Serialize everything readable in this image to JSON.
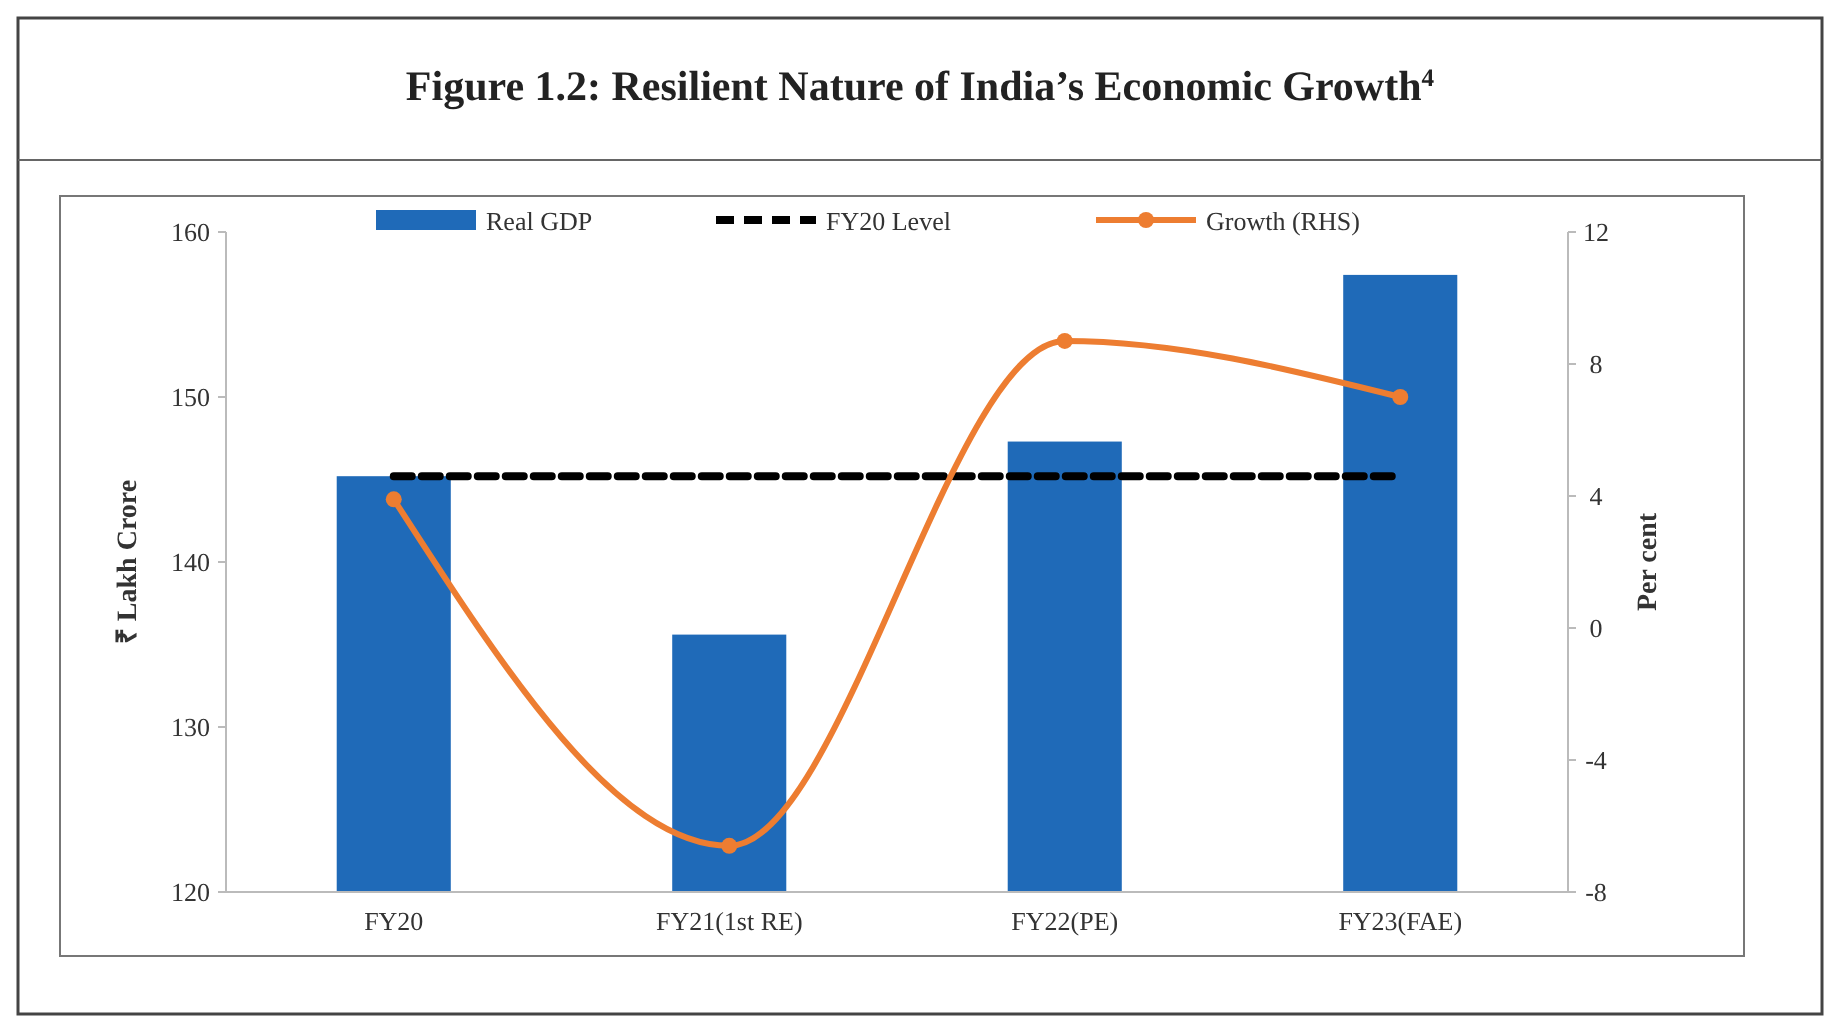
{
  "chart_data": {
    "type": "bar",
    "title": "Figure 1.2: Resilient Nature of India’s Economic Growth$^{4}$",
    "categories": [
      "FY20",
      "FY21(1st RE)",
      "FY22(PE)",
      "FY23(FAE)"
    ],
    "series": [
      {
        "name": "Real GDP",
        "color": "#1f6ab8",
        "values": [
          145.2,
          135.6,
          147.3,
          157.4
        ]
      },
      {
        "name": "FY20 Level",
        "type": "line",
        "color": "#000000",
        "line_style": "dashed",
        "marker": "none",
        "values": [
          145.2,
          145.2,
          145.2,
          145.2
        ]
      },
      {
        "name": "Growth (RHS)",
        "type": "line",
        "axis": "y2",
        "color": "#ed7d31",
        "line_style": "solid",
        "marker": "circle",
        "values": [
          3.9,
          -6.6,
          8.7,
          7.0
        ]
      }
    ],
    "ylabel": "₹ Lakh Crore",
    "y2label": "Per cent",
    "ylim": [
      120,
      160
    ],
    "yticks": [
      120,
      130,
      140,
      150,
      160
    ],
    "y2lim": [
      -8,
      12
    ],
    "y2ticks": [
      -8,
      -4,
      0,
      4,
      8,
      12
    ],
    "grid": false,
    "legend": "top"
  }
}
